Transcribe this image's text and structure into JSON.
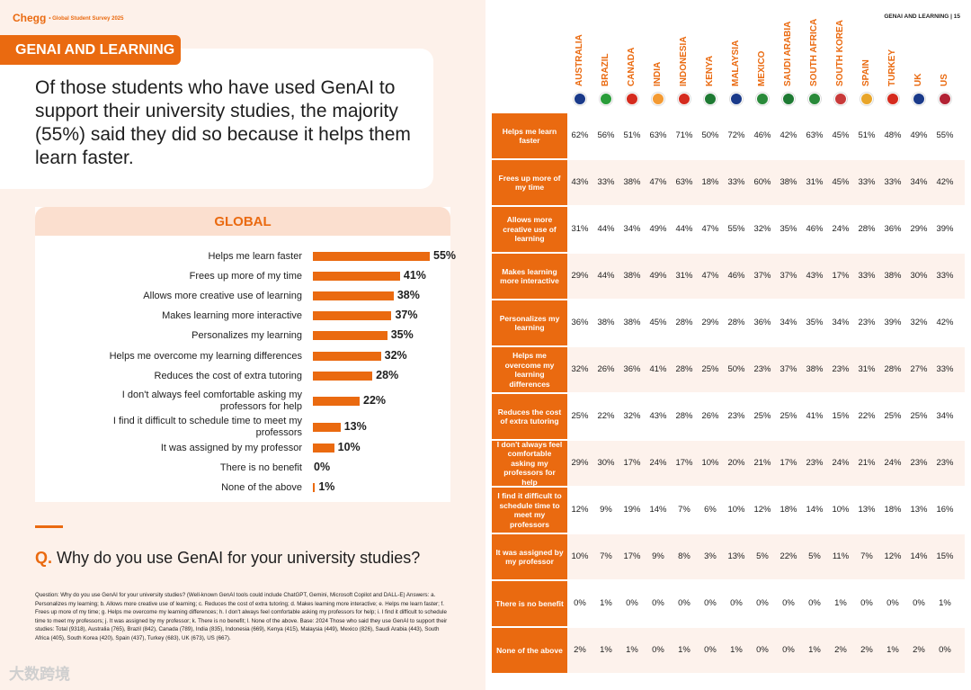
{
  "brand": {
    "name": "Chegg",
    "sub": "• Global Student Survey 2025"
  },
  "section_tab": "GENAI AND LEARNING",
  "headline": "Of those students who have used GenAI to support their university studies, the majority (55%) said they did so because it helps them learn faster.",
  "global_title": "GLOBAL",
  "question": {
    "prefix": "Q.",
    "text": "Why do you use GenAI for your university studies?"
  },
  "footnote": "Question: Why do you use GenAI for your university studies? (Well-known GenAI tools could include ChatGPT, Gemini, Microsoft Copilot and DALL-E) Answers: a. Personalizes my learning; b. Allows more creative use of learning; c. Reduces the cost of extra tutoring; d. Makes learning more interactive; e. Helps me learn faster; f. Frees up more of my time; g. Helps me overcome my learning differences; h. I don't always feel comfortable asking my professors for help; i. I find it difficult to schedule time to meet my professors; j. It was assigned by my professor; k. There is no benefit; l. None of the above. Base: 2024 Those who said they use GenAI to support their studies: Total (9318), Australia (765), Brazil (842), Canada (789), India (835), Indonesia (669), Kenya (415), Malaysia (449), Mexico (826), Saudi Arabia (443), South Africa (405), South Korea (420), Spain (437), Turkey (683), UK (673), US (667).",
  "watermark": "大数跨境",
  "page_title": "GENAI AND LEARNING  |  15",
  "accent": "#ea6a10",
  "chart_data": [
    {
      "type": "bar",
      "orientation": "horizontal",
      "title": "GLOBAL",
      "categories": [
        "Helps me learn faster",
        "Frees up more of my time",
        "Allows more creative use of learning",
        "Makes learning more interactive",
        "Personalizes my learning",
        "Helps me overcome my learning differences",
        "Reduces the cost of extra tutoring",
        "I don't always feel comfortable asking my professors for help",
        "I find it difficult to schedule time to meet my professors",
        "It was assigned by my professor",
        "There is no benefit",
        "None of the above"
      ],
      "values": [
        55,
        41,
        38,
        37,
        35,
        32,
        28,
        22,
        13,
        10,
        0,
        1
      ],
      "value_labels": [
        "55%",
        "41%",
        "38%",
        "37%",
        "35%",
        "32%",
        "28%",
        "22%",
        "13%",
        "10%",
        "0%",
        "1%"
      ],
      "unit": "%"
    },
    {
      "type": "table",
      "columns": [
        "AUSTRALIA",
        "BRAZIL",
        "CANADA",
        "INDIA",
        "INDONESIA",
        "KENYA",
        "MALAYSIA",
        "MEXICO",
        "SAUDI ARABIA",
        "SOUTH AFRICA",
        "SOUTH KOREA",
        "SPAIN",
        "TURKEY",
        "UK",
        "US"
      ],
      "flag_colors": [
        "#1a3a8a",
        "#2a9d3a",
        "#d52b1e",
        "#f39a33",
        "#d52b1e",
        "#1e7a33",
        "#1a3a8a",
        "#2a8a3a",
        "#1e7a33",
        "#2a8a3a",
        "#c83a3a",
        "#e8a52a",
        "#d52b1e",
        "#1a3a8a",
        "#b22234"
      ],
      "rows": [
        {
          "label": "Helps me learn faster",
          "values": [
            "62%",
            "56%",
            "51%",
            "63%",
            "71%",
            "50%",
            "72%",
            "46%",
            "42%",
            "63%",
            "45%",
            "51%",
            "48%",
            "49%",
            "55%"
          ]
        },
        {
          "label": "Frees up more of my time",
          "values": [
            "43%",
            "33%",
            "38%",
            "47%",
            "63%",
            "18%",
            "33%",
            "60%",
            "38%",
            "31%",
            "45%",
            "33%",
            "33%",
            "34%",
            "42%"
          ]
        },
        {
          "label": "Allows more creative use of learning",
          "values": [
            "31%",
            "44%",
            "34%",
            "49%",
            "44%",
            "47%",
            "55%",
            "32%",
            "35%",
            "46%",
            "24%",
            "28%",
            "36%",
            "29%",
            "39%"
          ]
        },
        {
          "label": "Makes learning more interactive",
          "values": [
            "29%",
            "44%",
            "38%",
            "49%",
            "31%",
            "47%",
            "46%",
            "37%",
            "37%",
            "43%",
            "17%",
            "33%",
            "38%",
            "30%",
            "33%"
          ]
        },
        {
          "label": "Personalizes my learning",
          "values": [
            "36%",
            "38%",
            "38%",
            "45%",
            "28%",
            "29%",
            "28%",
            "36%",
            "34%",
            "35%",
            "34%",
            "23%",
            "39%",
            "32%",
            "42%"
          ]
        },
        {
          "label": "Helps me overcome my learning differences",
          "values": [
            "32%",
            "26%",
            "36%",
            "41%",
            "28%",
            "25%",
            "50%",
            "23%",
            "37%",
            "38%",
            "23%",
            "31%",
            "28%",
            "27%",
            "33%"
          ]
        },
        {
          "label": "Reduces the cost of extra tutoring",
          "values": [
            "25%",
            "22%",
            "32%",
            "43%",
            "28%",
            "26%",
            "23%",
            "25%",
            "25%",
            "41%",
            "15%",
            "22%",
            "25%",
            "25%",
            "34%"
          ]
        },
        {
          "label": "I don't always feel comfortable asking my professors for help",
          "values": [
            "29%",
            "30%",
            "17%",
            "24%",
            "17%",
            "10%",
            "20%",
            "21%",
            "17%",
            "23%",
            "24%",
            "21%",
            "24%",
            "23%",
            "23%"
          ]
        },
        {
          "label": "I find it difficult to schedule time to meet my professors",
          "values": [
            "12%",
            "9%",
            "19%",
            "14%",
            "7%",
            "6%",
            "10%",
            "12%",
            "18%",
            "14%",
            "10%",
            "13%",
            "18%",
            "13%",
            "16%"
          ]
        },
        {
          "label": "It was assigned by my professor",
          "values": [
            "10%",
            "7%",
            "17%",
            "9%",
            "8%",
            "3%",
            "13%",
            "5%",
            "22%",
            "5%",
            "11%",
            "7%",
            "12%",
            "14%",
            "15%"
          ]
        },
        {
          "label": "There is no benefit",
          "values": [
            "0%",
            "1%",
            "0%",
            "0%",
            "0%",
            "0%",
            "0%",
            "0%",
            "0%",
            "0%",
            "1%",
            "0%",
            "0%",
            "0%",
            "1%"
          ]
        },
        {
          "label": "None of the above",
          "values": [
            "2%",
            "1%",
            "1%",
            "0%",
            "1%",
            "0%",
            "1%",
            "0%",
            "0%",
            "1%",
            "2%",
            "2%",
            "1%",
            "2%",
            "0%"
          ]
        }
      ]
    }
  ]
}
